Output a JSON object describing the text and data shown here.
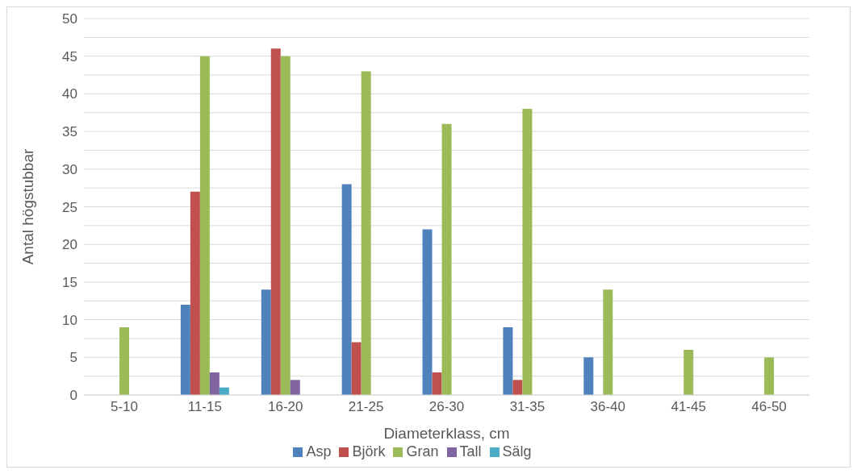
{
  "chart_data": {
    "type": "bar",
    "xlabel": "Diameterklass, cm",
    "ylabel": "Antal högstubbar",
    "categories": [
      "5-10",
      "11-15",
      "16-20",
      "21-25",
      "26-30",
      "31-35",
      "36-40",
      "41-45",
      "46-50"
    ],
    "series": [
      {
        "name": "Asp",
        "color": "#4f81bd",
        "values": [
          0,
          12,
          14,
          28,
          22,
          9,
          5,
          0,
          0
        ]
      },
      {
        "name": "Björk",
        "color": "#c0504d",
        "values": [
          0,
          27,
          46,
          7,
          3,
          2,
          0,
          0,
          0
        ]
      },
      {
        "name": "Gran",
        "color": "#9bbb59",
        "values": [
          9,
          45,
          45,
          43,
          36,
          38,
          14,
          6,
          5
        ]
      },
      {
        "name": "Tall",
        "color": "#8064a2",
        "values": [
          0,
          3,
          2,
          0,
          0,
          0,
          0,
          0,
          0
        ]
      },
      {
        "name": "Sälg",
        "color": "#4bacc6",
        "values": [
          0,
          1,
          0,
          0,
          0,
          0,
          0,
          0,
          0
        ]
      }
    ],
    "ylim": [
      0,
      50
    ],
    "yticks": [
      0,
      {
        "value": 2.5,
        "label": null
      },
      5,
      {
        "value": 7.5,
        "label": null
      },
      10,
      {
        "value": 12.5,
        "label": null
      },
      15,
      {
        "value": 17.5,
        "label": null
      },
      20,
      {
        "value": 22.5,
        "label": null
      },
      25,
      {
        "value": 27.5,
        "label": null
      },
      30,
      {
        "value": 32.5,
        "label": null
      },
      35,
      {
        "value": 37.5,
        "label": null
      },
      40,
      {
        "value": 42.5,
        "label": null
      },
      45,
      {
        "value": 47.5,
        "label": null
      },
      50
    ],
    "grid": "y",
    "legend": "bottom"
  }
}
